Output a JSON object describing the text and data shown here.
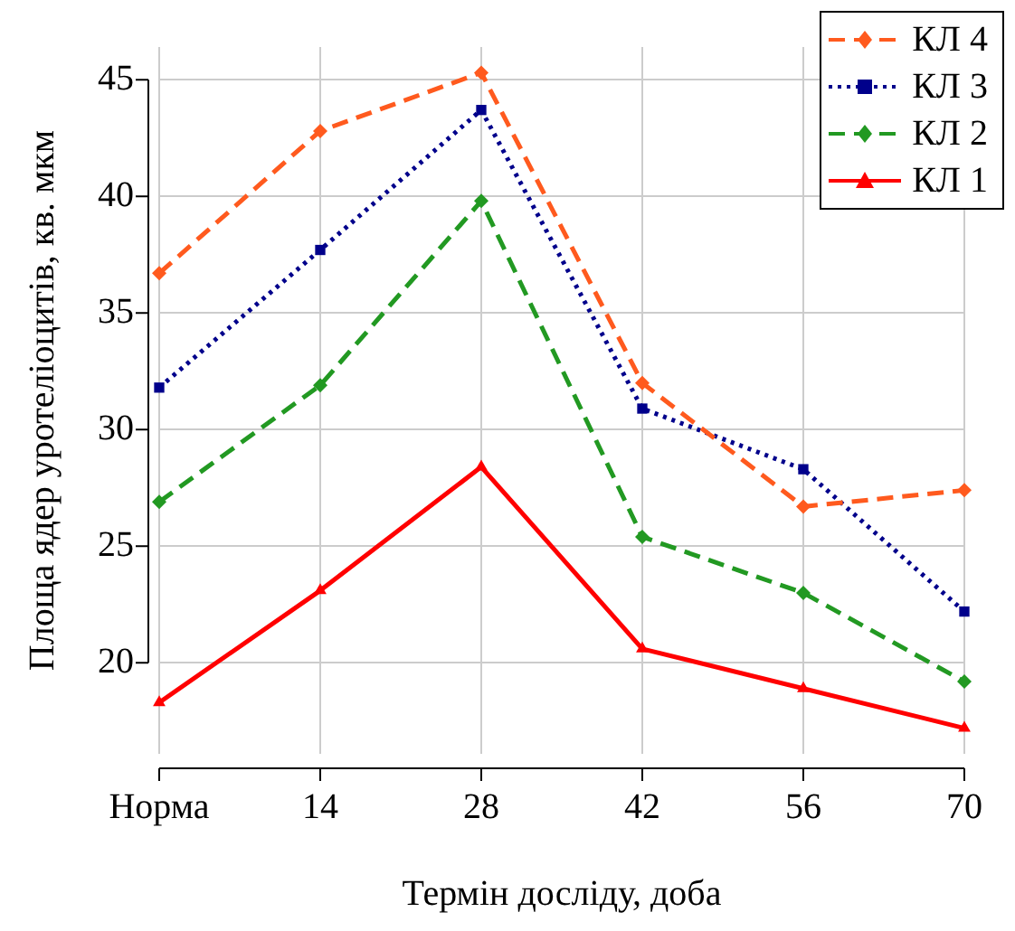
{
  "chart_data": {
    "type": "line",
    "xlabel": "Термін досліду, доба",
    "ylabel": "Площа ядер уротеліоцитів, кв. мкм",
    "categories": [
      "Норма",
      "14",
      "28",
      "42",
      "56",
      "70"
    ],
    "ylim": [
      16.1,
      46.4
    ],
    "yticks": [
      20,
      25,
      30,
      35,
      40,
      45
    ],
    "grid": true,
    "legend": "top right",
    "series": [
      {
        "name": "КЛ 4",
        "color": "#ff5a1e",
        "marker": "diamond",
        "line_style": "dashed",
        "values": [
          36.7,
          42.8,
          45.3,
          32.0,
          26.7,
          27.4
        ]
      },
      {
        "name": "КЛ 3",
        "color": "#00008b",
        "marker": "square",
        "line_style": "dotted",
        "values": [
          31.8,
          37.7,
          43.7,
          30.9,
          28.3,
          22.2
        ]
      },
      {
        "name": "КЛ 2",
        "color": "#229922",
        "marker": "diamond",
        "line_style": "dashed",
        "values": [
          26.9,
          31.9,
          39.8,
          25.4,
          23.0,
          19.2
        ]
      },
      {
        "name": "КЛ 1",
        "color": "#ff0000",
        "marker": "triangle",
        "line_style": "solid",
        "values": [
          18.3,
          23.1,
          28.4,
          20.6,
          18.9,
          17.2
        ]
      }
    ]
  }
}
